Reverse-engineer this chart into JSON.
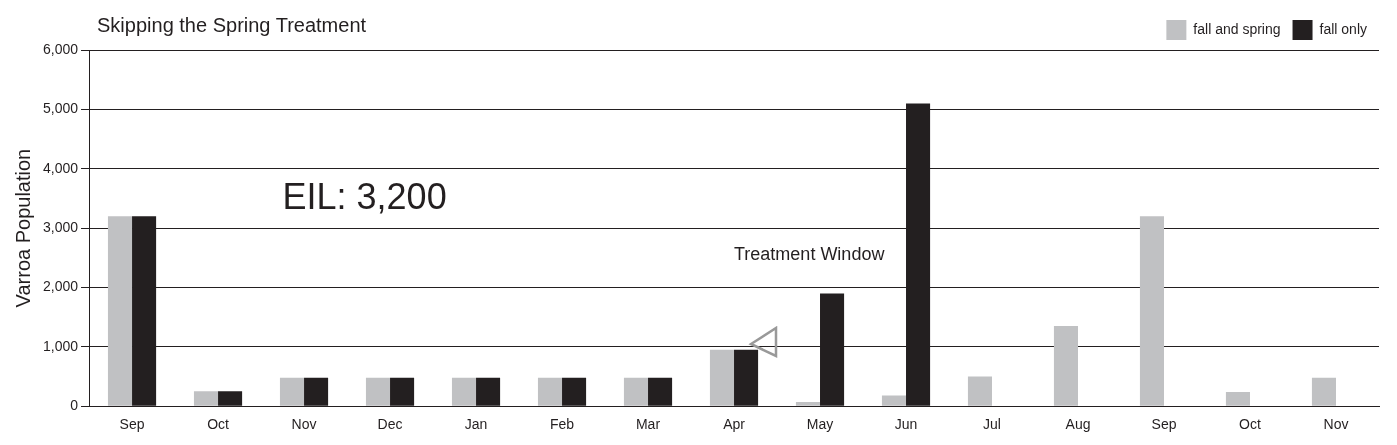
{
  "chart_data": {
    "type": "bar",
    "title": "Skipping the Spring Treatment",
    "ylabel": "Varroa Population",
    "categories": [
      "Sep",
      "Oct",
      "Nov",
      "Dec",
      "Jan",
      "Feb",
      "Mar",
      "Apr",
      "May",
      "Jun",
      "Jul",
      "Aug",
      "Sep",
      "Oct",
      "Nov"
    ],
    "series": [
      {
        "name": "fall and spring",
        "color": "#c0c1c3",
        "values": [
          3200,
          250,
          480,
          480,
          480,
          480,
          480,
          950,
          70,
          180,
          500,
          1350,
          3200,
          240,
          480
        ]
      },
      {
        "name": "fall only",
        "color": "#231f20",
        "values": [
          3200,
          250,
          480,
          480,
          480,
          480,
          480,
          950,
          1900,
          5100,
          null,
          null,
          null,
          null,
          null
        ]
      }
    ],
    "ylim": [
      0,
      6000
    ],
    "yticks": [
      {
        "value": 0,
        "label": "0"
      },
      {
        "value": 1000,
        "label": "1,000"
      },
      {
        "value": 2000,
        "label": "2,000"
      },
      {
        "value": 3000,
        "label": "3,000"
      },
      {
        "value": 4000,
        "label": "4,000"
      },
      {
        "value": 5000,
        "label": "5,000"
      },
      {
        "value": 6000,
        "label": "6,000"
      }
    ],
    "annotations": [
      "EIL: 3,200",
      "Treatment Window"
    ],
    "grid": "y",
    "legend": "top right"
  }
}
